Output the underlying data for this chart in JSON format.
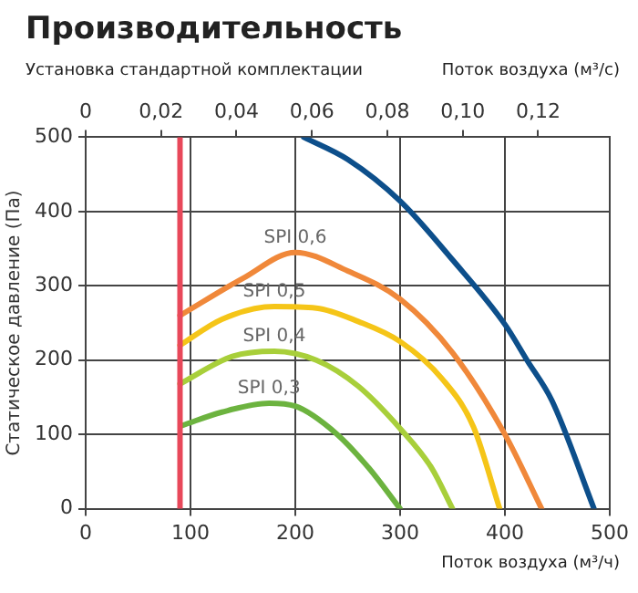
{
  "chart_data": {
    "type": "line",
    "title": "Производительность",
    "subtitle": "Установка стандартной комплектации",
    "xlabel": "Поток воздуха (м³/ч)",
    "ylabel": "Статическое давление (Па)",
    "x2label": "Поток воздуха (м³/с)",
    "xlim": [
      0,
      500
    ],
    "xticks": [
      0,
      100,
      200,
      300,
      400,
      500
    ],
    "ylim": [
      0,
      500
    ],
    "yticks": [
      0,
      100,
      200,
      300,
      400,
      500
    ],
    "x2lim": [
      0,
      0.139
    ],
    "x2ticks": [
      0,
      {
        "value": 0.02,
        "label": "0,02"
      },
      {
        "value": 0.04,
        "label": "0,04"
      },
      {
        "value": 0.06,
        "label": "0,06"
      },
      {
        "value": 0.08,
        "label": "0,08"
      },
      {
        "value": 0.1,
        "label": "0,10"
      },
      {
        "value": 0.12,
        "label": "0,12"
      }
    ],
    "grid": true,
    "legend": false,
    "marker": "none",
    "line_style": "solid",
    "ref_lines": [
      {
        "axis": "x",
        "value": 90,
        "color": "#e8485a"
      }
    ],
    "series": [
      {
        "color": "#0d4f8b",
        "x": [
          208,
          250,
          300,
          350,
          400,
          421,
          445,
          485
        ],
        "values": [
          500,
          470,
          414,
          335,
          248,
          200,
          145,
          0
        ]
      },
      {
        "name": "SPI 0,6",
        "color": "#f0883a",
        "x": [
          90,
          150,
          200,
          250,
          300,
          350,
          400,
          435
        ],
        "values": [
          260,
          310,
          345,
          320,
          282,
          210,
          100,
          0
        ]
      },
      {
        "name": "SPI 0,5",
        "color": "#f5c518",
        "x": [
          90,
          130,
          180,
          220,
          260,
          300,
          340,
          370,
          395
        ],
        "values": [
          220,
          255,
          272,
          270,
          252,
          225,
          175,
          110,
          0
        ]
      },
      {
        "name": "SPI 0,4",
        "color": "#a8cf3a",
        "x": [
          90,
          140,
          180,
          220,
          260,
          300,
          330,
          350
        ],
        "values": [
          168,
          205,
          212,
          200,
          165,
          108,
          55,
          0
        ]
      },
      {
        "name": "SPI 0,3",
        "color": "#6cb33f",
        "x": [
          92,
          130,
          175,
          200,
          240,
          270,
          300
        ],
        "values": [
          112,
          130,
          142,
          138,
          100,
          55,
          0
        ]
      }
    ]
  }
}
